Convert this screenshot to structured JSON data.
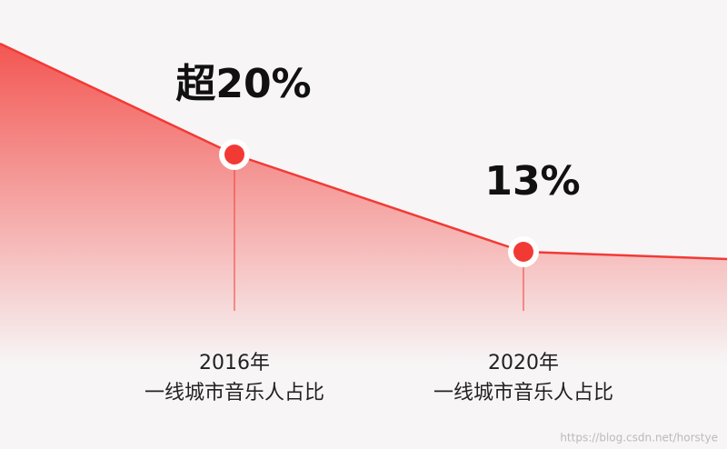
{
  "chart_data": {
    "type": "line",
    "categories": [
      "2016年",
      "2020年"
    ],
    "category_note": "一线城市音乐人占比",
    "values": [
      20,
      13
    ],
    "value_labels": [
      "超20%",
      "13%"
    ],
    "color": "#f23a35"
  },
  "watermark": "https://blog.csdn.net/horstye"
}
